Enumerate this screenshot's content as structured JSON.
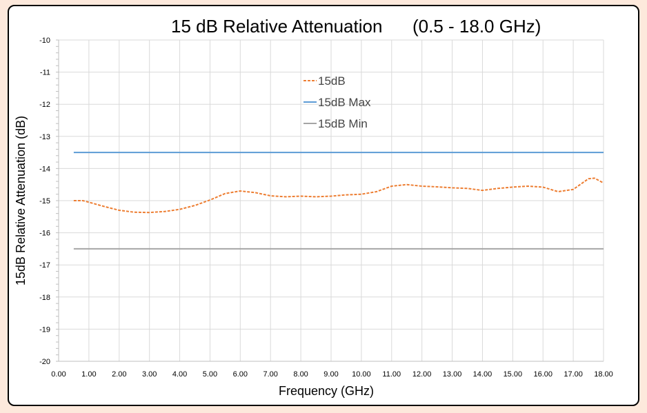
{
  "chart_data": {
    "type": "line",
    "title": "15 dB Relative Attenuation",
    "title_range": "(0.5 - 18.0 GHz)",
    "xlabel": "Frequency (GHz)",
    "ylabel": "15dB Relative Attenuation (dB)",
    "xlim": [
      0,
      18
    ],
    "ylim": [
      -20,
      -10
    ],
    "x_ticks": [
      "0.00",
      "1.00",
      "2.00",
      "3.00",
      "4.00",
      "5.00",
      "6.00",
      "7.00",
      "8.00",
      "9.00",
      "10.00",
      "11.00",
      "12.00",
      "13.00",
      "14.00",
      "15.00",
      "16.00",
      "17.00",
      "18.00"
    ],
    "y_ticks": [
      "-10",
      "-11",
      "-12",
      "-13",
      "-14",
      "-15",
      "-16",
      "-17",
      "-18",
      "-19",
      "-20"
    ],
    "grid": true,
    "legend_position": "top-center",
    "series": [
      {
        "name": "15dB",
        "color": "#ED7D31",
        "style": "dashed",
        "x": [
          0.5,
          0.8,
          1.0,
          1.5,
          2.0,
          2.5,
          3.0,
          3.5,
          4.0,
          4.5,
          5.0,
          5.5,
          6.0,
          6.5,
          7.0,
          7.5,
          8.0,
          8.5,
          9.0,
          9.5,
          10.0,
          10.5,
          11.0,
          11.5,
          12.0,
          12.5,
          13.0,
          13.5,
          14.0,
          14.5,
          15.0,
          15.5,
          16.0,
          16.5,
          17.0,
          17.3,
          17.5,
          17.7,
          18.0
        ],
        "y": [
          -15.0,
          -15.0,
          -15.05,
          -15.18,
          -15.3,
          -15.36,
          -15.37,
          -15.34,
          -15.27,
          -15.15,
          -14.98,
          -14.78,
          -14.7,
          -14.75,
          -14.85,
          -14.88,
          -14.86,
          -14.88,
          -14.86,
          -14.82,
          -14.8,
          -14.72,
          -14.55,
          -14.5,
          -14.55,
          -14.57,
          -14.6,
          -14.62,
          -14.68,
          -14.62,
          -14.58,
          -14.55,
          -14.58,
          -14.72,
          -14.65,
          -14.45,
          -14.32,
          -14.3,
          -14.45
        ]
      },
      {
        "name": "15dB Max",
        "color": "#5B9BD5",
        "style": "solid",
        "x": [
          0.5,
          18.0
        ],
        "y": [
          -13.5,
          -13.5
        ]
      },
      {
        "name": "15dB Min",
        "color": "#A5A5A5",
        "style": "solid",
        "x": [
          0.5,
          18.0
        ],
        "y": [
          -16.5,
          -16.5
        ]
      }
    ]
  }
}
